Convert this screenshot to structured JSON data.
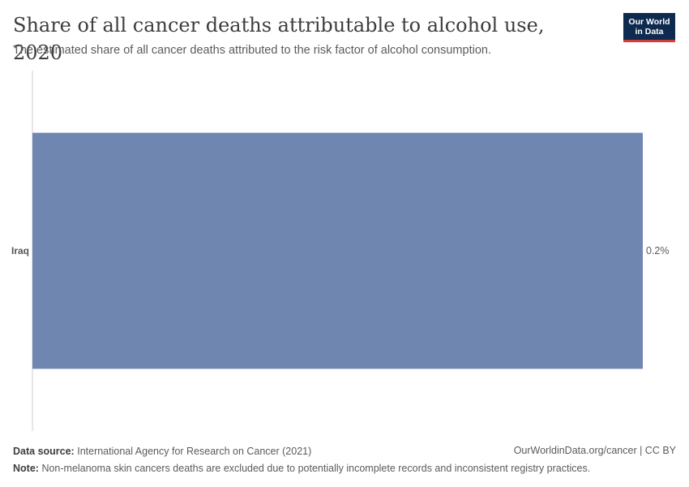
{
  "header": {
    "title": "Share of all cancer deaths attributable to alcohol use, 2020",
    "subtitle": "The estimated share of all cancer deaths attributed to the risk factor of alcohol consumption.",
    "logo_line1": "Our World",
    "logo_line2": "in Data"
  },
  "chart_data": {
    "type": "bar",
    "orientation": "horizontal",
    "categories": [
      "Iraq"
    ],
    "values": [
      0.2
    ],
    "value_labels": [
      "0.2%"
    ],
    "xlim": [
      0,
      0.2
    ],
    "bar_color": "#6f87b0",
    "axis_color": "#cccccc"
  },
  "footer": {
    "source_label": "Data source:",
    "source_text": "International Agency for Research on Cancer (2021)",
    "note_label": "Note:",
    "note_text": "Non-melanoma skin cancers deaths are excluded due to potentially incomplete records and inconsistent registry practices.",
    "license": "OurWorldinData.org/cancer | CC BY"
  }
}
